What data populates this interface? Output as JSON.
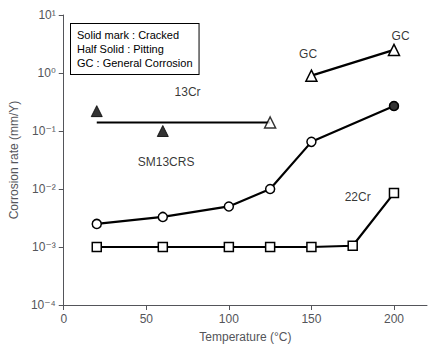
{
  "chart_data": {
    "type": "line",
    "xlabel": "Temperature (°C)",
    "ylabel": "Corrosion rate (mm/Y)",
    "log": "y",
    "grid": false,
    "xlim": [
      0,
      220
    ],
    "xticks": [
      0,
      50,
      100,
      150,
      200
    ],
    "ylim": [
      0.0001,
      10
    ],
    "yticks": [
      {
        "value": 0.0001,
        "label": "10⁻⁴"
      },
      {
        "value": 0.001,
        "label": "10⁻³"
      },
      {
        "value": 0.01,
        "label": "10⁻²"
      },
      {
        "value": 0.1,
        "label": "10⁻¹"
      },
      {
        "value": 1,
        "label": "10⁰"
      },
      {
        "value": 10,
        "label": "10¹"
      }
    ],
    "series": [
      {
        "type": "line",
        "color": "black",
        "marker": "triangle-open",
        "x": [
          150,
          200
        ],
        "values": [
          0.9,
          2.5
        ]
      },
      {
        "type": "line",
        "color": "black",
        "marker": "none",
        "x": [
          20,
          125
        ],
        "values": [
          0.14,
          0.14
        ]
      },
      {
        "type": "scatter",
        "color": "black",
        "marker": "triangle-open",
        "x": [
          125
        ],
        "values": [
          0.14
        ]
      },
      {
        "type": "scatter",
        "color": "black",
        "marker": "triangle",
        "x": [
          20,
          60
        ],
        "values": [
          0.22,
          0.1
        ]
      },
      {
        "type": "line",
        "color": "black",
        "marker": "circle-open",
        "x": [
          20,
          60,
          100,
          125,
          150,
          200
        ],
        "values": [
          0.0025,
          0.0033,
          0.005,
          0.01,
          0.065,
          0.27
        ]
      },
      {
        "type": "scatter",
        "color": "black",
        "marker": "circle",
        "x": [
          200
        ],
        "values": [
          0.27
        ]
      },
      {
        "type": "line",
        "color": "black",
        "marker": "square-open",
        "x": [
          20,
          60,
          100,
          125,
          150,
          175,
          200
        ],
        "values": [
          0.001,
          0.001,
          0.001,
          0.001,
          0.001,
          0.00105,
          0.0085
        ]
      }
    ],
    "annotations": [
      {
        "text": "GC",
        "x": 148,
        "y": 1.2
      },
      {
        "text": "GC",
        "x": 204,
        "y": 2.5
      },
      {
        "text": "13Cr",
        "x": 75,
        "y": 0.27
      },
      {
        "text": "SM13CRS",
        "x": 62,
        "y": 0.017
      },
      {
        "text": "22Cr",
        "x": 178,
        "y": 0.0042
      },
      {
        "text": "Solid mark : Cracked\nHalf Solid : Pitting\nGC : General Corrosion"
      }
    ]
  }
}
